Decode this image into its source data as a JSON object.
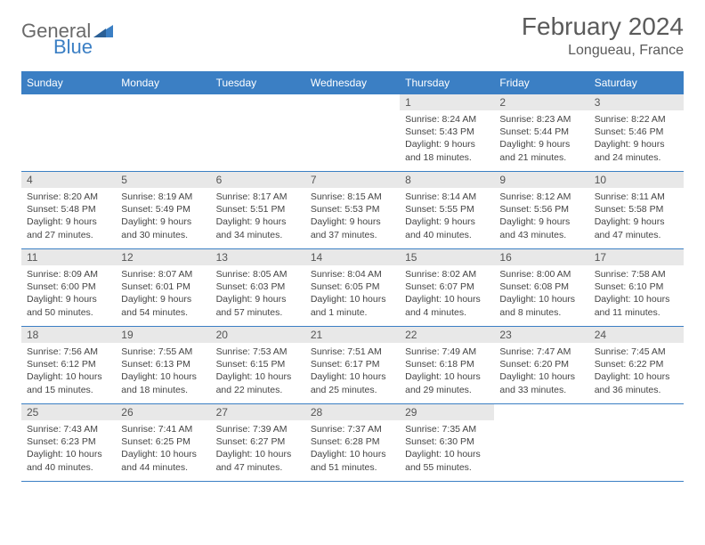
{
  "logo": {
    "general": "General",
    "blue": "Blue"
  },
  "title": {
    "month": "February 2024",
    "location": "Longueau, France"
  },
  "colors": {
    "header_bg": "#3b7fc4",
    "daynum_bg": "#e8e8e8",
    "row_border": "#3b7fc4"
  },
  "weekdays": [
    "Sunday",
    "Monday",
    "Tuesday",
    "Wednesday",
    "Thursday",
    "Friday",
    "Saturday"
  ],
  "weeks": [
    [
      null,
      null,
      null,
      null,
      {
        "n": "1",
        "sr": "Sunrise: 8:24 AM",
        "ss": "Sunset: 5:43 PM",
        "d1": "Daylight: 9 hours",
        "d2": "and 18 minutes."
      },
      {
        "n": "2",
        "sr": "Sunrise: 8:23 AM",
        "ss": "Sunset: 5:44 PM",
        "d1": "Daylight: 9 hours",
        "d2": "and 21 minutes."
      },
      {
        "n": "3",
        "sr": "Sunrise: 8:22 AM",
        "ss": "Sunset: 5:46 PM",
        "d1": "Daylight: 9 hours",
        "d2": "and 24 minutes."
      }
    ],
    [
      {
        "n": "4",
        "sr": "Sunrise: 8:20 AM",
        "ss": "Sunset: 5:48 PM",
        "d1": "Daylight: 9 hours",
        "d2": "and 27 minutes."
      },
      {
        "n": "5",
        "sr": "Sunrise: 8:19 AM",
        "ss": "Sunset: 5:49 PM",
        "d1": "Daylight: 9 hours",
        "d2": "and 30 minutes."
      },
      {
        "n": "6",
        "sr": "Sunrise: 8:17 AM",
        "ss": "Sunset: 5:51 PM",
        "d1": "Daylight: 9 hours",
        "d2": "and 34 minutes."
      },
      {
        "n": "7",
        "sr": "Sunrise: 8:15 AM",
        "ss": "Sunset: 5:53 PM",
        "d1": "Daylight: 9 hours",
        "d2": "and 37 minutes."
      },
      {
        "n": "8",
        "sr": "Sunrise: 8:14 AM",
        "ss": "Sunset: 5:55 PM",
        "d1": "Daylight: 9 hours",
        "d2": "and 40 minutes."
      },
      {
        "n": "9",
        "sr": "Sunrise: 8:12 AM",
        "ss": "Sunset: 5:56 PM",
        "d1": "Daylight: 9 hours",
        "d2": "and 43 minutes."
      },
      {
        "n": "10",
        "sr": "Sunrise: 8:11 AM",
        "ss": "Sunset: 5:58 PM",
        "d1": "Daylight: 9 hours",
        "d2": "and 47 minutes."
      }
    ],
    [
      {
        "n": "11",
        "sr": "Sunrise: 8:09 AM",
        "ss": "Sunset: 6:00 PM",
        "d1": "Daylight: 9 hours",
        "d2": "and 50 minutes."
      },
      {
        "n": "12",
        "sr": "Sunrise: 8:07 AM",
        "ss": "Sunset: 6:01 PM",
        "d1": "Daylight: 9 hours",
        "d2": "and 54 minutes."
      },
      {
        "n": "13",
        "sr": "Sunrise: 8:05 AM",
        "ss": "Sunset: 6:03 PM",
        "d1": "Daylight: 9 hours",
        "d2": "and 57 minutes."
      },
      {
        "n": "14",
        "sr": "Sunrise: 8:04 AM",
        "ss": "Sunset: 6:05 PM",
        "d1": "Daylight: 10 hours",
        "d2": "and 1 minute."
      },
      {
        "n": "15",
        "sr": "Sunrise: 8:02 AM",
        "ss": "Sunset: 6:07 PM",
        "d1": "Daylight: 10 hours",
        "d2": "and 4 minutes."
      },
      {
        "n": "16",
        "sr": "Sunrise: 8:00 AM",
        "ss": "Sunset: 6:08 PM",
        "d1": "Daylight: 10 hours",
        "d2": "and 8 minutes."
      },
      {
        "n": "17",
        "sr": "Sunrise: 7:58 AM",
        "ss": "Sunset: 6:10 PM",
        "d1": "Daylight: 10 hours",
        "d2": "and 11 minutes."
      }
    ],
    [
      {
        "n": "18",
        "sr": "Sunrise: 7:56 AM",
        "ss": "Sunset: 6:12 PM",
        "d1": "Daylight: 10 hours",
        "d2": "and 15 minutes."
      },
      {
        "n": "19",
        "sr": "Sunrise: 7:55 AM",
        "ss": "Sunset: 6:13 PM",
        "d1": "Daylight: 10 hours",
        "d2": "and 18 minutes."
      },
      {
        "n": "20",
        "sr": "Sunrise: 7:53 AM",
        "ss": "Sunset: 6:15 PM",
        "d1": "Daylight: 10 hours",
        "d2": "and 22 minutes."
      },
      {
        "n": "21",
        "sr": "Sunrise: 7:51 AM",
        "ss": "Sunset: 6:17 PM",
        "d1": "Daylight: 10 hours",
        "d2": "and 25 minutes."
      },
      {
        "n": "22",
        "sr": "Sunrise: 7:49 AM",
        "ss": "Sunset: 6:18 PM",
        "d1": "Daylight: 10 hours",
        "d2": "and 29 minutes."
      },
      {
        "n": "23",
        "sr": "Sunrise: 7:47 AM",
        "ss": "Sunset: 6:20 PM",
        "d1": "Daylight: 10 hours",
        "d2": "and 33 minutes."
      },
      {
        "n": "24",
        "sr": "Sunrise: 7:45 AM",
        "ss": "Sunset: 6:22 PM",
        "d1": "Daylight: 10 hours",
        "d2": "and 36 minutes."
      }
    ],
    [
      {
        "n": "25",
        "sr": "Sunrise: 7:43 AM",
        "ss": "Sunset: 6:23 PM",
        "d1": "Daylight: 10 hours",
        "d2": "and 40 minutes."
      },
      {
        "n": "26",
        "sr": "Sunrise: 7:41 AM",
        "ss": "Sunset: 6:25 PM",
        "d1": "Daylight: 10 hours",
        "d2": "and 44 minutes."
      },
      {
        "n": "27",
        "sr": "Sunrise: 7:39 AM",
        "ss": "Sunset: 6:27 PM",
        "d1": "Daylight: 10 hours",
        "d2": "and 47 minutes."
      },
      {
        "n": "28",
        "sr": "Sunrise: 7:37 AM",
        "ss": "Sunset: 6:28 PM",
        "d1": "Daylight: 10 hours",
        "d2": "and 51 minutes."
      },
      {
        "n": "29",
        "sr": "Sunrise: 7:35 AM",
        "ss": "Sunset: 6:30 PM",
        "d1": "Daylight: 10 hours",
        "d2": "and 55 minutes."
      },
      null,
      null
    ]
  ]
}
